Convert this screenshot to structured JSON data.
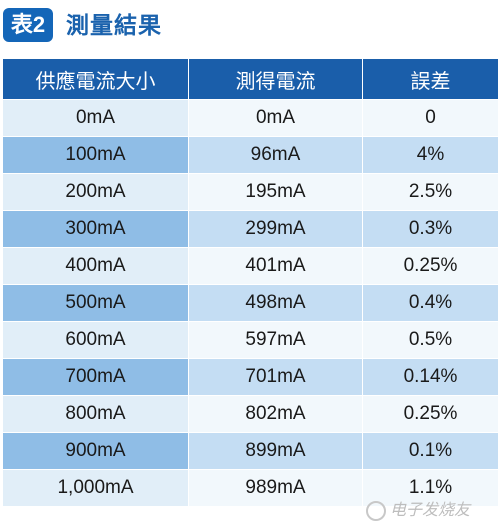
{
  "header": {
    "badge": "表2",
    "title": "測量結果"
  },
  "table": {
    "columns": [
      "供應電流大小",
      "測得電流",
      "誤差"
    ],
    "rows": [
      [
        "0mA",
        "0mA",
        "0"
      ],
      [
        "100mA",
        "96mA",
        "4%"
      ],
      [
        "200mA",
        "195mA",
        "2.5%"
      ],
      [
        "300mA",
        "299mA",
        "0.3%"
      ],
      [
        "400mA",
        "401mA",
        "0.25%"
      ],
      [
        "500mA",
        "498mA",
        "0.4%"
      ],
      [
        "600mA",
        "597mA",
        "0.5%"
      ],
      [
        "700mA",
        "701mA",
        "0.14%"
      ],
      [
        "800mA",
        "802mA",
        "0.25%"
      ],
      [
        "900mA",
        "899mA",
        "0.1%"
      ],
      [
        "1,000mA",
        "989mA",
        "1.1%"
      ]
    ]
  },
  "watermark": {
    "text": "电子发烧友",
    "icon": "elecfans-logo-icon"
  },
  "colors": {
    "header_bg": "#1a5eaa",
    "title_text": "#1a62ad",
    "row_light_key": "#e1eef8",
    "row_light_val": "#f2f8fc",
    "row_dark_key": "#8fbde6",
    "row_dark_val": "#c4ddf3"
  }
}
